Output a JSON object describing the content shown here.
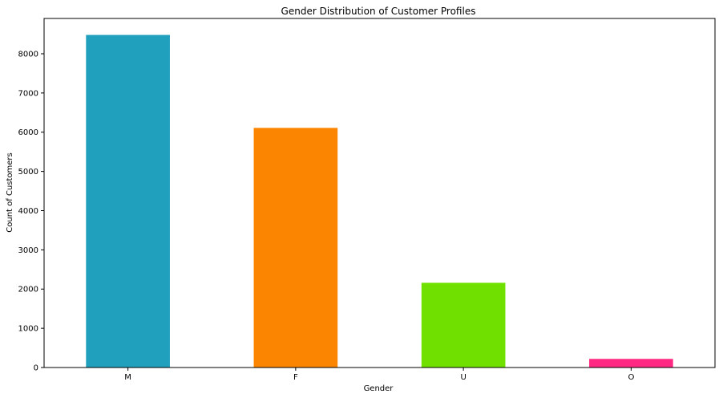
{
  "chart_data": {
    "type": "bar",
    "title": "Gender Distribution of Customer Profiles",
    "xlabel": "Gender",
    "ylabel": "Count of Customers",
    "categories": [
      "M",
      "F",
      "U",
      "O"
    ],
    "values": [
      8480,
      6110,
      2160,
      220
    ],
    "colors": [
      "#21a0be",
      "#fb8500",
      "#70e000",
      "#ff2882"
    ],
    "ylim": [
      0,
      8900
    ],
    "yticks": [
      0,
      1000,
      2000,
      3000,
      4000,
      5000,
      6000,
      7000,
      8000
    ],
    "ytick_labels": [
      "0",
      "1000",
      "2000",
      "3000",
      "4000",
      "5000",
      "6000",
      "7000",
      "8000"
    ],
    "grid": false,
    "legend": "none"
  }
}
